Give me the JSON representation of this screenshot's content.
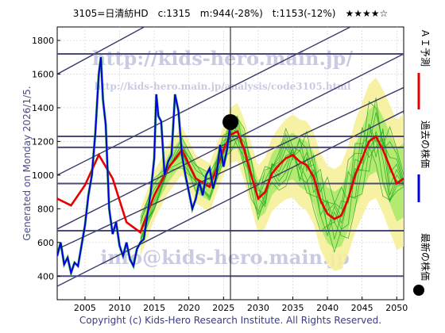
{
  "chart_data": {
    "type": "line",
    "header": "3105=日清紡HD　c:1315　m:944(-28%)　t:1153(-12%)　★★★★☆",
    "side_label": "Generated on Monday 2026/1/5.",
    "copyright": "Copyright (c) Kids-Hero Research Institute. All Rights Reserved.",
    "watermarks": [
      "http://kids-hero.main.jp/",
      "http://kids-hero.main.jp/analysis/code3105.html",
      "info@kids-hero.main.jp"
    ],
    "xlim": [
      2001,
      2051
    ],
    "ylim": [
      260,
      1880
    ],
    "x_ticks": [
      2005,
      2010,
      2015,
      2020,
      2025,
      2030,
      2035,
      2040,
      2045,
      2050
    ],
    "y_ticks": [
      400,
      600,
      800,
      1000,
      1200,
      1400,
      1600,
      1800
    ],
    "grid": true,
    "legend_placement": "right-outside",
    "legend": [
      {
        "label": "ＡＩ予測",
        "color": "#e60000",
        "marker": "line"
      },
      {
        "label": "過去の株価",
        "color": "#0000dd",
        "marker": "line"
      },
      {
        "label": "最新の株価",
        "color": "#000000",
        "marker": "dot"
      }
    ],
    "latest_point": {
      "x": 2026.0,
      "y": 1315
    },
    "now_year": 2026.0,
    "horizontal_levels": [
      1720,
      1230,
      1165,
      950,
      670,
      400
    ],
    "trend_lines": [
      {
        "x1": 2001,
        "y1": 340,
        "x2": 2051,
        "y2": 1380
      },
      {
        "x1": 2001,
        "y1": 560,
        "x2": 2051,
        "y2": 1520
      },
      {
        "x1": 2001,
        "y1": 680,
        "x2": 2051,
        "y2": 1720
      },
      {
        "x1": 2001,
        "y1": 1000,
        "x2": 2051,
        "y2": 2040
      },
      {
        "x1": 2001,
        "y1": 1600,
        "x2": 2027,
        "y2": 2180
      }
    ],
    "series": [
      {
        "name": "過去の株価",
        "x": [
          2001.0,
          2001.5,
          2002.0,
          2002.5,
          2003.0,
          2003.5,
          2004.0,
          2004.5,
          2005.0,
          2005.5,
          2006.0,
          2006.5,
          2007.0,
          2007.3,
          2007.6,
          2008.0,
          2008.5,
          2009.0,
          2009.5,
          2010.0,
          2010.5,
          2011.0,
          2011.5,
          2012.0,
          2012.5,
          2013.0,
          2013.5,
          2014.0,
          2014.5,
          2015.0,
          2015.3,
          2015.6,
          2016.0,
          2016.5,
          2017.0,
          2017.5,
          2018.0,
          2018.5,
          2019.0,
          2019.5,
          2020.0,
          2020.5,
          2021.0,
          2021.5,
          2022.0,
          2022.5,
          2023.0,
          2023.5,
          2024.0,
          2024.5,
          2025.0,
          2025.5,
          2026.0
        ],
        "values": [
          520,
          600,
          470,
          510,
          420,
          480,
          460,
          580,
          700,
          880,
          1000,
          1250,
          1600,
          1700,
          1450,
          1300,
          800,
          650,
          720,
          580,
          520,
          600,
          500,
          460,
          560,
          600,
          620,
          760,
          900,
          1100,
          1480,
          1350,
          1320,
          1000,
          1080,
          1120,
          1480,
          1380,
          1120,
          1000,
          900,
          800,
          860,
          960,
          880,
          1000,
          1040,
          920,
          1000,
          1180,
          1050,
          1150,
          1315
        ],
        "color": "#0000dd"
      },
      {
        "name": "ＡＩ予測",
        "x": [
          2001,
          2003,
          2005,
          2007,
          2009,
          2011,
          2013,
          2015,
          2017,
          2019,
          2021,
          2023,
          2025,
          2026,
          2027,
          2028,
          2029,
          2030,
          2031,
          2032,
          2033,
          2034,
          2035,
          2036,
          2037,
          2038,
          2039,
          2040,
          2041,
          2042,
          2043,
          2044,
          2045,
          2046,
          2047,
          2048,
          2049,
          2050,
          2051
        ],
        "values": [
          860,
          820,
          940,
          1120,
          980,
          720,
          660,
          880,
          1040,
          1150,
          980,
          930,
          1150,
          1240,
          1260,
          1150,
          1000,
          860,
          900,
          1010,
          1060,
          1100,
          1120,
          1080,
          1060,
          990,
          850,
          770,
          740,
          760,
          860,
          1000,
          1100,
          1200,
          1230,
          1150,
          1050,
          950,
          980
        ],
        "color": "#e60000"
      }
    ]
  }
}
